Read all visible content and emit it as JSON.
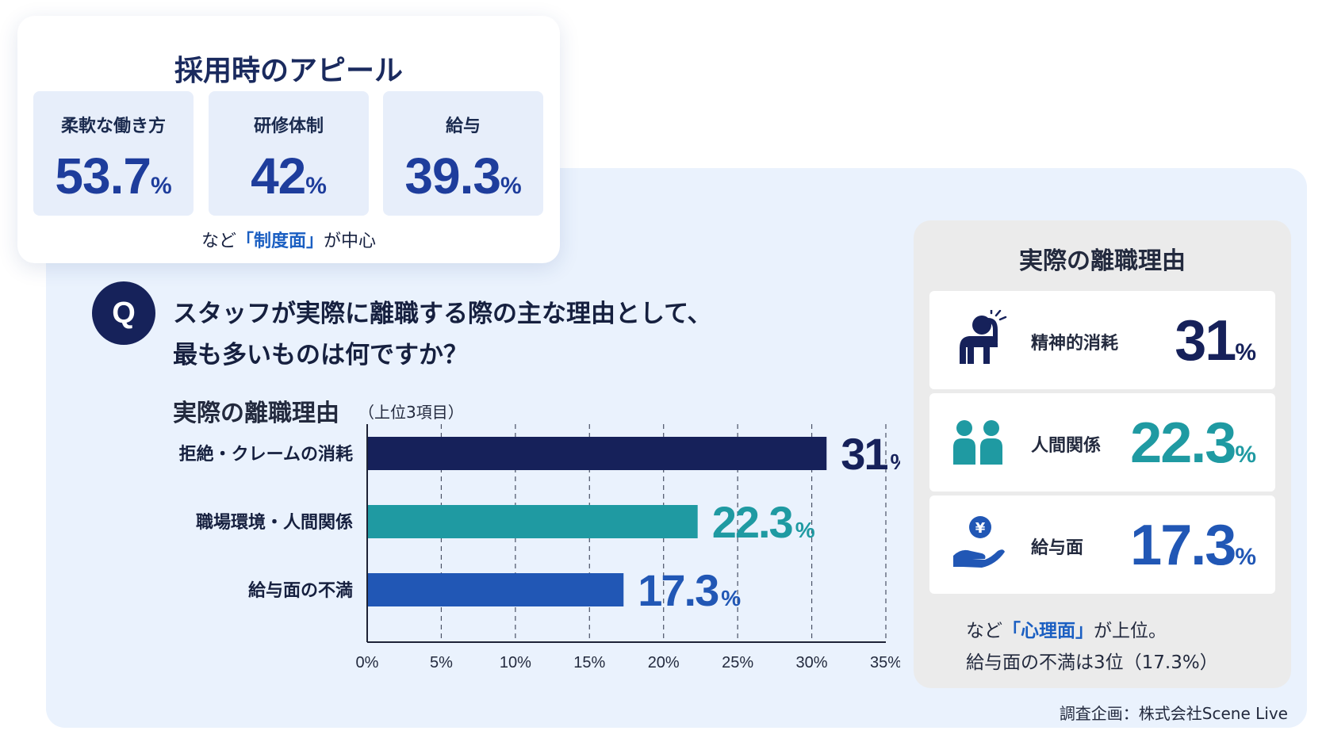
{
  "appeal": {
    "title": "採用時のアピール",
    "items": [
      {
        "label": "柔軟な働き方",
        "value": "53.7",
        "unit": "%"
      },
      {
        "label": "研修体制",
        "value": "42",
        "unit": "%"
      },
      {
        "label": "給与",
        "value": "39.3",
        "unit": "%"
      }
    ],
    "note_pre": "など",
    "note_em": "「制度面」",
    "note_post": "が中心"
  },
  "question": {
    "badge": "Q",
    "line1": "スタッフが実際に離職する際の主な理由として、",
    "line2": "最も多いものは何ですか？"
  },
  "chart_data": {
    "type": "bar",
    "orientation": "horizontal",
    "title": "実際の離職理由",
    "subtitle": "（上位3項目）",
    "categories": [
      "拒絶・クレームの消耗",
      "職場環境・人間関係",
      "給与面の不満"
    ],
    "values": [
      31,
      22.3,
      17.3
    ],
    "value_labels": [
      "31",
      "22.3",
      "17.3"
    ],
    "unit": "%",
    "colors": [
      "#16215a",
      "#1f9aa2",
      "#2157b5"
    ],
    "xlim": [
      0,
      35
    ],
    "xticks": [
      "0%",
      "5%",
      "10%",
      "15%",
      "20%",
      "25%",
      "30%",
      "35%"
    ],
    "grid": "vertical dashed"
  },
  "reasons": {
    "title": "実際の離職理由",
    "items": [
      {
        "icon": "stressed-person-icon",
        "label": "精神的消耗",
        "value": "31",
        "unit": "%",
        "color": "#16215a"
      },
      {
        "icon": "two-people-icon",
        "label": "人間関係",
        "value": "22.3",
        "unit": "%",
        "color": "#1f9aa2"
      },
      {
        "icon": "yen-hand-icon",
        "label": "給与面",
        "value": "17.3",
        "unit": "%",
        "color": "#2157b5"
      }
    ],
    "note_pre": "など",
    "note_em": "「心理面」",
    "note_post": "が上位。",
    "note_line2": "給与面の不満は3位（17.3%）"
  },
  "credit": "調査企画：株式会社Scene Live"
}
